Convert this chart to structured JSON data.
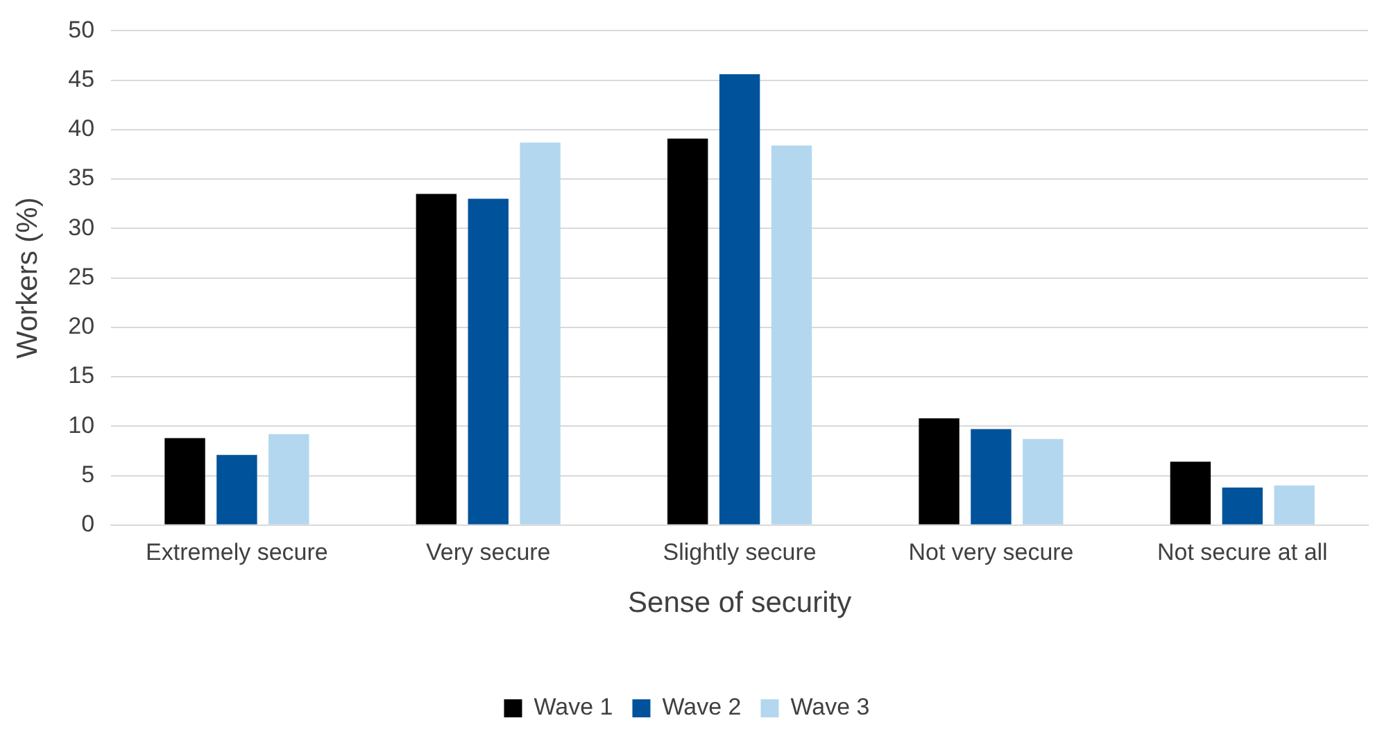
{
  "chart_data": {
    "type": "bar",
    "xlabel": "Sense of security",
    "ylabel": "Workers (%)",
    "categories": [
      "Extremely secure",
      "Very secure",
      "Slightly secure",
      "Not very secure",
      "Not secure at all"
    ],
    "series": [
      {
        "name": "Wave 1",
        "color": "#000000",
        "values": [
          8.8,
          33.5,
          39.1,
          10.8,
          6.4
        ]
      },
      {
        "name": "Wave 2",
        "color": "#00529b",
        "values": [
          7.1,
          33.0,
          45.6,
          9.7,
          3.8
        ]
      },
      {
        "name": "Wave 3",
        "color": "#b3d7ef",
        "values": [
          9.2,
          38.7,
          38.4,
          8.7,
          4.0
        ]
      }
    ],
    "ylim": [
      0,
      50
    ],
    "yticks": [
      0,
      5,
      10,
      15,
      20,
      25,
      30,
      35,
      40,
      45,
      50
    ],
    "grid": "y",
    "legend": "bottom"
  }
}
